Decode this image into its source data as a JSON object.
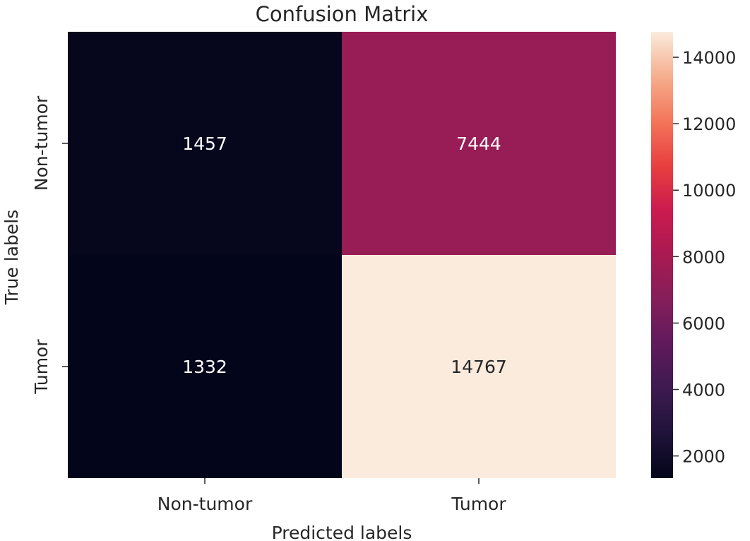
{
  "chart_data": {
    "type": "heatmap",
    "title": "Confusion Matrix",
    "xlabel": "Predicted labels",
    "ylabel": "True labels",
    "x_categories": [
      "Non-tumor",
      "Tumor"
    ],
    "y_categories": [
      "Non-tumor",
      "Tumor"
    ],
    "values": [
      [
        1457,
        7444
      ],
      [
        1332,
        14767
      ]
    ],
    "colormap": "rocket",
    "colorbar": {
      "min": 1332,
      "max": 14767,
      "ticks": [
        2000,
        4000,
        6000,
        8000,
        10000,
        12000,
        14000
      ]
    },
    "colors": {
      "low_text": "#ffffff",
      "high_text": "#262626",
      "text": "#262626"
    }
  }
}
